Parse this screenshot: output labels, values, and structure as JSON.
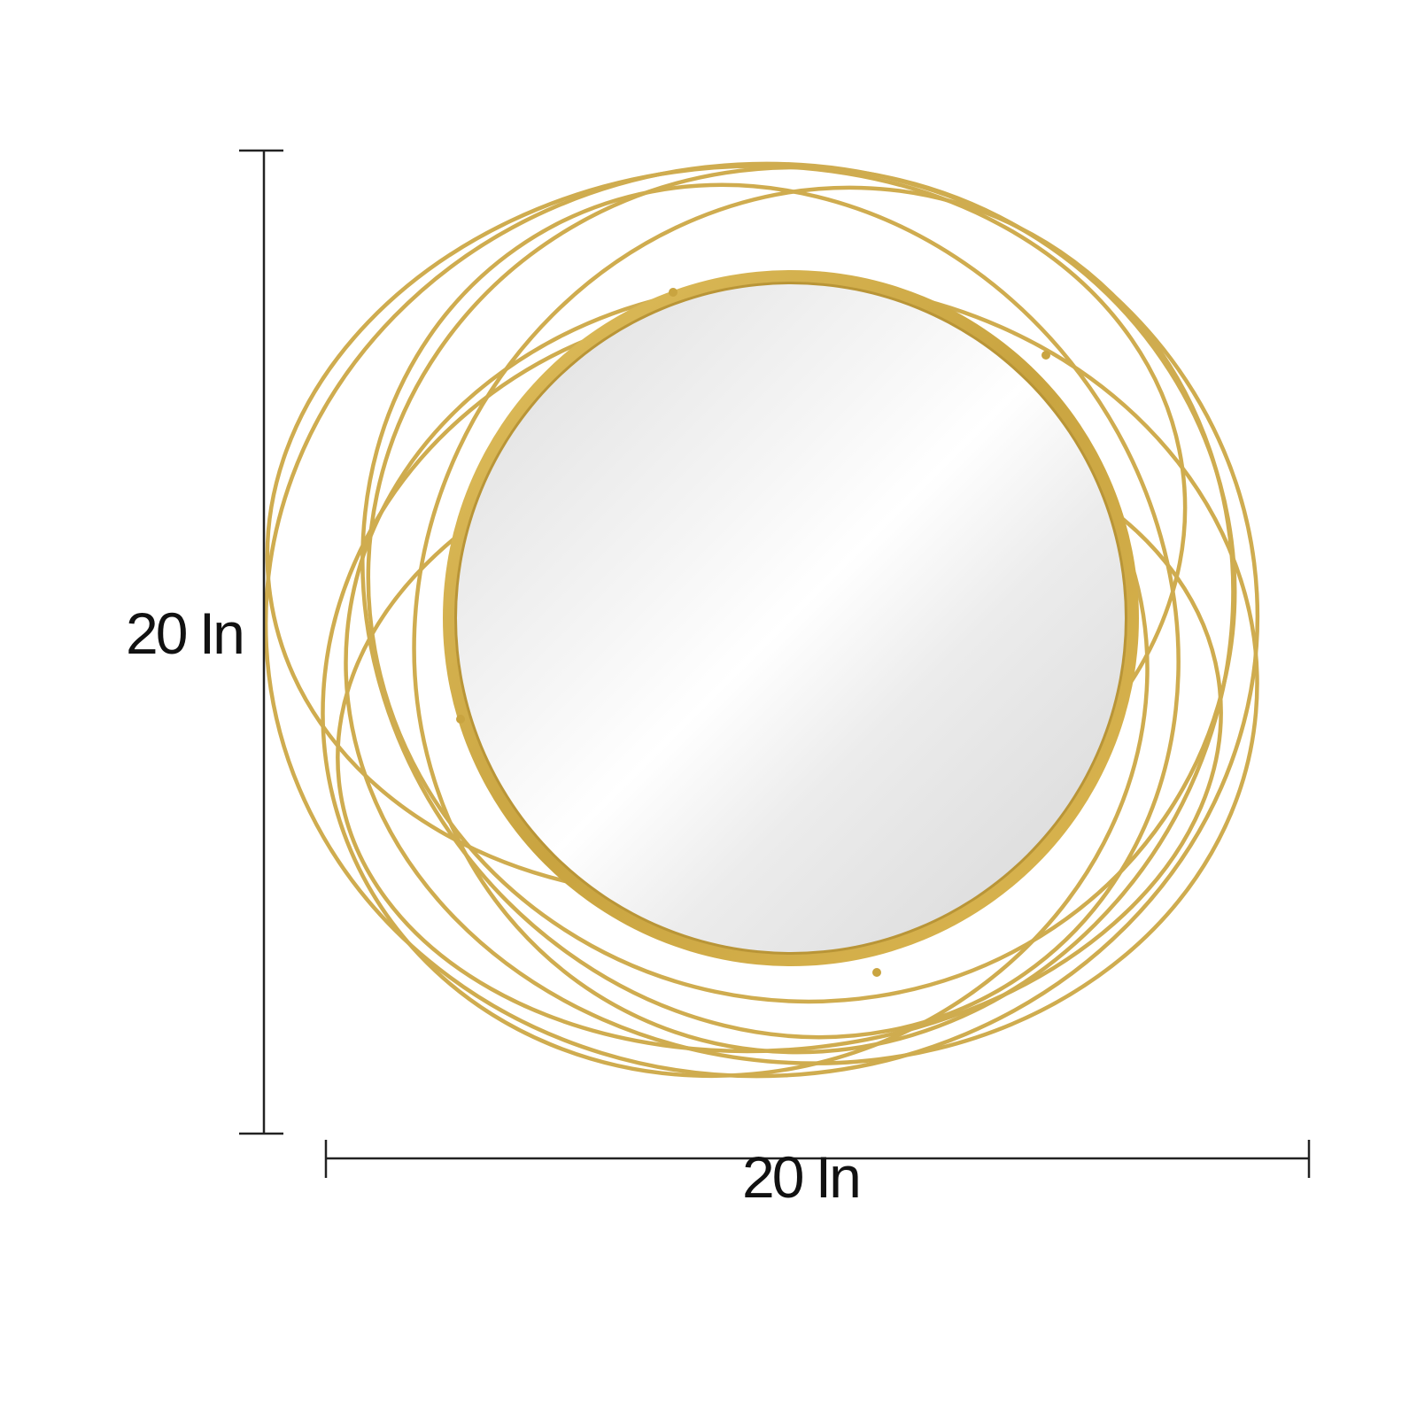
{
  "dimensions": {
    "height_label": "20 In",
    "width_label": "20 In"
  },
  "colors": {
    "background": "#ffffff",
    "frame_gold": "#cfac4f",
    "frame_gold_dark": "#b08a2e",
    "mirror_light": "#f6f6f6",
    "mirror_shade": "#d9d9d9",
    "dimension_line": "#222222",
    "label_text": "#111111"
  }
}
